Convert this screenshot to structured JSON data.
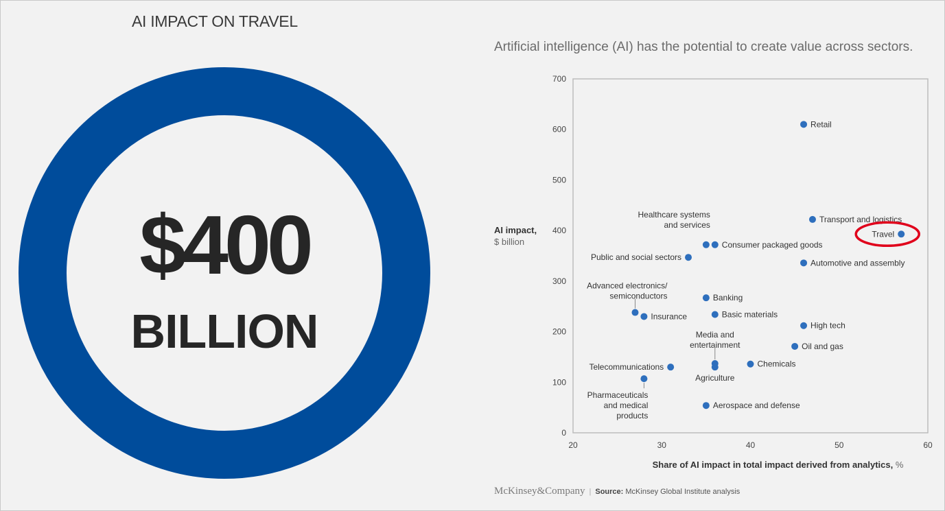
{
  "left_panel": {
    "title": "AI IMPACT ON TRAVEL",
    "amount": "$400",
    "unit": "BILLION",
    "ring_color": "#004c9b"
  },
  "subtitle": "Artificial intelligence (AI) has the potential to create value across sectors.",
  "source": {
    "brand": "McKinsey&Company",
    "label": "Source:",
    "text": "McKinsey Global Institute analysis"
  },
  "chart_data": {
    "type": "scatter",
    "xlabel": "Share of AI impact in total impact derived from analytics,",
    "xlabel_unit": "%",
    "ylabel": "AI impact,",
    "ylabel_unit": "$ billion",
    "xlim": [
      20,
      60
    ],
    "ylim": [
      0,
      700
    ],
    "xticks": [
      20,
      30,
      40,
      50,
      60
    ],
    "yticks": [
      0,
      100,
      200,
      300,
      400,
      500,
      600,
      700
    ],
    "point_color": "#2e6fbd",
    "highlight_color": "#e0001b",
    "highlight": "Travel",
    "points": [
      {
        "label": "Retail",
        "x": 46,
        "y": 610
      },
      {
        "label": "Transport and logistics",
        "x": 47,
        "y": 422
      },
      {
        "label": "Travel",
        "x": 57,
        "y": 393
      },
      {
        "label": "Healthcare systems and services",
        "x": 35,
        "y": 372
      },
      {
        "label": "Consumer packaged goods",
        "x": 36,
        "y": 372
      },
      {
        "label": "Public and social sectors",
        "x": 33,
        "y": 347
      },
      {
        "label": "Automotive and assembly",
        "x": 46,
        "y": 336
      },
      {
        "label": "Banking",
        "x": 35,
        "y": 267
      },
      {
        "label": "Advanced electronics/ semiconductors",
        "x": 27,
        "y": 238
      },
      {
        "label": "Insurance",
        "x": 28,
        "y": 230
      },
      {
        "label": "Basic materials",
        "x": 36,
        "y": 234
      },
      {
        "label": "High tech",
        "x": 46,
        "y": 212
      },
      {
        "label": "Oil and gas",
        "x": 45,
        "y": 171
      },
      {
        "label": "Media and entertainment",
        "x": 36,
        "y": 137
      },
      {
        "label": "Agriculture",
        "x": 36,
        "y": 130
      },
      {
        "label": "Chemicals",
        "x": 40,
        "y": 136
      },
      {
        "label": "Telecommunications",
        "x": 31,
        "y": 130
      },
      {
        "label": "Pharmaceuticals and medical products",
        "x": 28,
        "y": 107
      },
      {
        "label": "Aerospace and defense",
        "x": 35,
        "y": 54
      }
    ]
  }
}
